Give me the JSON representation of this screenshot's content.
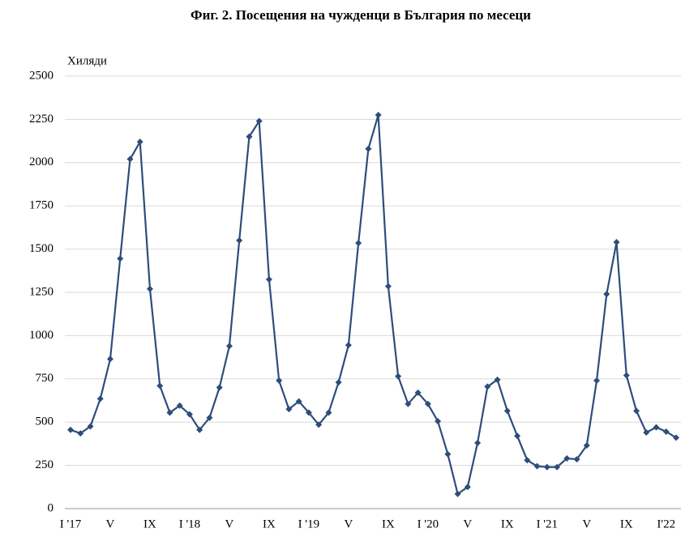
{
  "chart_data": {
    "type": "line",
    "title": "Фиг. 2. Посещения на чужденци в България по месеци",
    "y_label": "Хиляди",
    "categories": [
      "I '17",
      null,
      null,
      null,
      "V",
      null,
      null,
      null,
      "IX",
      null,
      null,
      null,
      "I '18",
      null,
      null,
      null,
      "V",
      null,
      null,
      null,
      "IX",
      null,
      null,
      null,
      "I '19",
      null,
      null,
      null,
      "V",
      null,
      null,
      null,
      "IX",
      null,
      null,
      null,
      "I '20",
      null,
      null,
      null,
      "V",
      null,
      null,
      null,
      "IX",
      null,
      null,
      null,
      "I '21",
      null,
      null,
      null,
      "V",
      null,
      null,
      null,
      "IX",
      null,
      null,
      null,
      "I'22",
      null
    ],
    "series": [
      {
        "name": "Посещения",
        "color": "#2e4d7b",
        "values": [
          455,
          435,
          475,
          635,
          865,
          1445,
          2020,
          2120,
          1270,
          710,
          555,
          595,
          545,
          455,
          525,
          700,
          940,
          1550,
          2150,
          2240,
          1325,
          740,
          575,
          620,
          555,
          485,
          555,
          730,
          945,
          1535,
          2080,
          2275,
          1285,
          765,
          605,
          670,
          605,
          505,
          315,
          85,
          125,
          380,
          705,
          745,
          565,
          420,
          280,
          245,
          240,
          240,
          290,
          285,
          365,
          740,
          1240,
          1540,
          770,
          565,
          440,
          470,
          445,
          410
        ]
      }
    ],
    "ylim": [
      0,
      2500
    ],
    "yticks": [
      0,
      250,
      500,
      750,
      1000,
      1250,
      1500,
      1750,
      2000,
      2250,
      2500
    ],
    "grid": true
  }
}
